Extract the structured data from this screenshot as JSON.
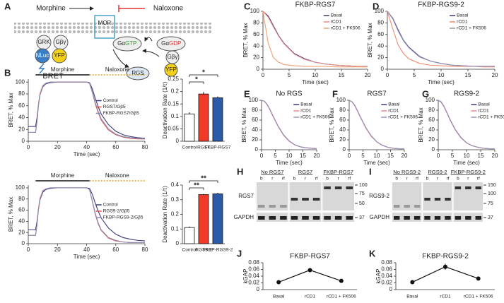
{
  "diagram": {
    "panel": "A",
    "agonist": "Morphine",
    "antagonist": "Naloxone",
    "receptor": "MOR",
    "grk": "GRK",
    "gbg_left": "Gβγ",
    "nluc": "NLuc",
    "yfp_left": "YFP",
    "bret": "BRET",
    "ga_gtp": {
      "subunit": "Gα",
      "nucleotide": "GTP"
    },
    "ga_gdp": {
      "subunit": "Gα",
      "nucleotide": "GDP"
    },
    "gbg_right": "Gβγ",
    "yfp_right": "YFP",
    "rgs": "RGS"
  },
  "chart_data": [
    {
      "type": "line",
      "panel": "B",
      "annotations": [
        "Morphine",
        "Naloxone"
      ],
      "x_label": "Time (sec)",
      "y_label": "BRET, % Max",
      "legend": "center right",
      "xlim": [
        0,
        80
      ],
      "ylim": [
        0,
        105
      ],
      "xticks": [
        0,
        20,
        40,
        60,
        80
      ],
      "yticks": [
        0,
        20,
        40,
        60,
        80,
        100
      ],
      "x": [
        0,
        5,
        6,
        7,
        8,
        10,
        12,
        15,
        20,
        30,
        40,
        42,
        44,
        46,
        48,
        50,
        55,
        60,
        65,
        70,
        75,
        80
      ],
      "series": [
        {
          "name": "Control",
          "color": "#3a3a78",
          "values": [
            25,
            25,
            40,
            62,
            78,
            92,
            97,
            99,
            100,
            100,
            100,
            99,
            88,
            72,
            58,
            46,
            28,
            17,
            11,
            8,
            6,
            5
          ]
        },
        {
          "name": "RGS7/Gβ5",
          "color": "#d9534f",
          "values": [
            15,
            15,
            35,
            62,
            80,
            94,
            98,
            100,
            100,
            100,
            100,
            98,
            82,
            63,
            48,
            36,
            19,
            11,
            7,
            5,
            4,
            4
          ]
        },
        {
          "name": "FKBP-RGS7/Gβ5",
          "color": "#8a8fb5",
          "values": [
            15,
            15,
            33,
            60,
            78,
            93,
            98,
            100,
            100,
            100,
            100,
            98,
            83,
            65,
            50,
            38,
            21,
            12,
            8,
            6,
            5,
            4
          ]
        }
      ]
    },
    {
      "type": "bar",
      "y_label": "Deactivation Rate (1/τ)",
      "categories": [
        "Control",
        "RGS7",
        "FKBP-RGS7"
      ],
      "values": [
        0.11,
        0.19,
        0.175
      ],
      "errors": [
        0.006,
        0.008,
        0.005
      ],
      "colors": [
        "#ffffff",
        "#f03a2a",
        "#2b5aa8"
      ],
      "ylim": [
        0,
        0.25
      ],
      "yticks": [
        0,
        0.05,
        0.1,
        0.15,
        0.2,
        0.25
      ],
      "significance": [
        "*",
        "*"
      ]
    },
    {
      "type": "line",
      "annotations": [
        "Morphine",
        "Naloxone"
      ],
      "x_label": "Time (sec)",
      "y_label": "BRET, % Max",
      "legend": "center right",
      "xlim": [
        0,
        80
      ],
      "ylim": [
        0,
        105
      ],
      "xticks": [
        0,
        20,
        40,
        60,
        80
      ],
      "yticks": [
        0,
        20,
        40,
        60,
        80,
        100
      ],
      "x": [
        0,
        5,
        6,
        7,
        8,
        10,
        12,
        15,
        20,
        30,
        40,
        42,
        44,
        46,
        48,
        50,
        55,
        60,
        65,
        70,
        75,
        80
      ],
      "series": [
        {
          "name": "Control",
          "color": "#3a3a78",
          "values": [
            25,
            25,
            40,
            62,
            78,
            92,
            97,
            99,
            100,
            100,
            100,
            99,
            88,
            72,
            58,
            46,
            28,
            17,
            11,
            8,
            6,
            5
          ]
        },
        {
          "name": "RGS9-2/Gβ5",
          "color": "#d9534f",
          "values": [
            15,
            15,
            36,
            63,
            81,
            95,
            98,
            100,
            100,
            100,
            100,
            97,
            75,
            52,
            35,
            24,
            10,
            5,
            3,
            2,
            2,
            2
          ]
        },
        {
          "name": "FKBP-RGS9-2/Gβ5",
          "color": "#8a8fb5",
          "values": [
            15,
            15,
            34,
            61,
            79,
            94,
            98,
            100,
            100,
            100,
            100,
            97,
            76,
            54,
            37,
            25,
            11,
            6,
            3,
            2,
            2,
            2
          ]
        }
      ]
    },
    {
      "type": "bar",
      "y_label": "Deactivation Rate (1/τ)",
      "categories": [
        "Control",
        "RGS9-2",
        "FKBP-RGS9-2"
      ],
      "values": [
        0.11,
        0.335,
        0.34
      ],
      "errors": [
        0.007,
        0.005,
        0.007
      ],
      "colors": [
        "#ffffff",
        "#f03a2a",
        "#2b5aa8"
      ],
      "ylim": [
        0,
        0.4
      ],
      "yticks": [
        0,
        0.1,
        0.2,
        0.3,
        0.4
      ],
      "significance": [
        "**",
        "**"
      ]
    },
    {
      "type": "line",
      "panel": "C",
      "title": "FKBP-RGS7",
      "x_label": "Time (sec)",
      "y_label": "BRET, % Max",
      "legend": "upper right",
      "xlim": [
        0,
        20
      ],
      "ylim": [
        0,
        100
      ],
      "xticks": [
        0,
        5,
        10,
        15,
        20
      ],
      "yticks": [
        0,
        20,
        40,
        60,
        80,
        100
      ],
      "x": [
        0,
        1,
        2,
        3,
        4,
        6,
        8,
        10,
        12,
        14,
        16,
        18,
        20
      ],
      "series": [
        {
          "name": "Basal",
          "color": "#3a3a78",
          "values": [
            100,
            92,
            75,
            58,
            45,
            27,
            18,
            12,
            9,
            7,
            6,
            5,
            5
          ]
        },
        {
          "name": "rCD1",
          "color": "#e58a8a",
          "values": [
            100,
            90,
            73,
            57,
            44,
            26,
            17,
            12,
            9,
            7,
            6,
            5,
            5
          ]
        },
        {
          "name": "rCD1 + FK506",
          "color": "#f0a070",
          "values": [
            100,
            45,
            20,
            12,
            8,
            6,
            5,
            5,
            5,
            4,
            4,
            4,
            4
          ]
        }
      ]
    },
    {
      "type": "line",
      "panel": "D",
      "title": "FKBP-RGS9-2",
      "x_label": "Time (sec)",
      "y_label": "BRET, % Max",
      "legend": "upper right",
      "xlim": [
        0,
        20
      ],
      "ylim": [
        0,
        100
      ],
      "xticks": [
        0,
        5,
        10,
        15,
        20
      ],
      "yticks": [
        0,
        20,
        40,
        60,
        80,
        100
      ],
      "x": [
        0,
        1,
        2,
        3,
        4,
        6,
        8,
        10,
        12,
        14,
        16,
        18,
        20
      ],
      "series": [
        {
          "name": "Basal",
          "color": "#3a3a78",
          "values": [
            100,
            88,
            68,
            50,
            38,
            22,
            14,
            10,
            7,
            6,
            5,
            5,
            5
          ]
        },
        {
          "name": "rCD1",
          "color": "#f08a70",
          "values": [
            100,
            70,
            42,
            27,
            18,
            10,
            7,
            6,
            5,
            5,
            5,
            4,
            4
          ]
        },
        {
          "name": "rCD1 + FK506",
          "color": "#9a90b8",
          "values": [
            100,
            87,
            66,
            49,
            37,
            21,
            14,
            10,
            7,
            6,
            5,
            5,
            5
          ]
        }
      ]
    },
    {
      "type": "line",
      "panel": "E",
      "title": "No RGS",
      "x_label": "Time (sec)",
      "y_label": "BRET, % Max",
      "legend": "upper right",
      "xlim": [
        0,
        20
      ],
      "ylim": [
        0,
        100
      ],
      "xticks": [
        0,
        5,
        10,
        15,
        20
      ],
      "yticks": [
        0,
        20,
        40,
        60,
        80,
        100
      ],
      "x": [
        0,
        1,
        2,
        3,
        4,
        6,
        8,
        10,
        12,
        14,
        16,
        18,
        20
      ],
      "series": [
        {
          "name": "Basal",
          "color": "#3a3a78",
          "values": [
            100,
            98,
            92,
            82,
            70,
            48,
            30,
            18,
            10,
            6,
            4,
            3,
            2
          ]
        },
        {
          "name": "rCD1",
          "color": "#e58a8a",
          "values": [
            100,
            98,
            91,
            81,
            69,
            47,
            29,
            17,
            10,
            6,
            4,
            3,
            2
          ]
        },
        {
          "name": "rCD1 + FK506",
          "color": "#9a90b8",
          "values": [
            100,
            98,
            92,
            82,
            70,
            48,
            30,
            18,
            10,
            6,
            4,
            3,
            2
          ]
        }
      ]
    },
    {
      "type": "line",
      "panel": "F",
      "title": "RGS7",
      "x_label": "Time (sec)",
      "y_label": "BRET, % Max",
      "legend": "upper right",
      "xlim": [
        0,
        20
      ],
      "ylim": [
        0,
        100
      ],
      "xticks": [
        0,
        5,
        10,
        15,
        20
      ],
      "yticks": [
        0,
        20,
        40,
        60,
        80,
        100
      ],
      "x": [
        0,
        1,
        2,
        3,
        4,
        6,
        8,
        10,
        12,
        14,
        16,
        18,
        20
      ],
      "series": [
        {
          "name": "Basal",
          "color": "#3a3a78",
          "values": [
            100,
            97,
            90,
            79,
            67,
            45,
            28,
            16,
            9,
            5,
            3,
            2,
            2
          ]
        },
        {
          "name": "rCD1",
          "color": "#e58a8a",
          "values": [
            100,
            97,
            89,
            78,
            66,
            44,
            27,
            16,
            9,
            5,
            3,
            2,
            2
          ]
        },
        {
          "name": "rCD1 + FK506",
          "color": "#9a90b8",
          "values": [
            100,
            97,
            90,
            79,
            67,
            45,
            28,
            16,
            9,
            5,
            3,
            2,
            2
          ]
        }
      ]
    },
    {
      "type": "line",
      "panel": "G",
      "title": "RGS9-2",
      "x_label": "Time (sec)",
      "y_label": "BRET, % Max",
      "legend": "upper right",
      "xlim": [
        0,
        20
      ],
      "ylim": [
        0,
        100
      ],
      "xticks": [
        0,
        5,
        10,
        15,
        20
      ],
      "yticks": [
        0,
        20,
        40,
        60,
        80,
        100
      ],
      "x": [
        0,
        1,
        2,
        3,
        4,
        6,
        8,
        10,
        12,
        14,
        16,
        18,
        20
      ],
      "series": [
        {
          "name": "Basal",
          "color": "#3a3a78",
          "values": [
            100,
            97,
            88,
            76,
            63,
            41,
            25,
            14,
            8,
            5,
            3,
            2,
            2
          ]
        },
        {
          "name": "rCD1",
          "color": "#e58a8a",
          "values": [
            100,
            96,
            87,
            75,
            62,
            40,
            24,
            14,
            8,
            5,
            3,
            2,
            2
          ]
        },
        {
          "name": "rCD1 + FK506",
          "color": "#9a90b8",
          "values": [
            100,
            97,
            88,
            76,
            63,
            41,
            25,
            14,
            8,
            5,
            3,
            2,
            2
          ]
        }
      ]
    },
    {
      "type": "point",
      "panel": "J",
      "title": "FKBP-RGS7",
      "y_label": "kGAP",
      "categories": [
        "Basal",
        "rCD1",
        "rCD1 + FK506"
      ],
      "values": [
        0.022,
        0.058,
        0.026
      ],
      "errors": [
        0.002,
        0.004,
        0.003
      ],
      "color": "#111111",
      "ylim": [
        0,
        0.08
      ],
      "yticks": [
        0,
        0.02,
        0.04,
        0.06,
        0.08
      ]
    },
    {
      "type": "point",
      "panel": "K",
      "title": "FKBP-RGS9-2",
      "y_label": "kGAP",
      "categories": [
        "Basal",
        "rCD1",
        "rCD1 + FK506"
      ],
      "values": [
        0.022,
        0.068,
        0.033
      ],
      "errors": [
        0.003,
        0.009,
        0.003
      ],
      "color": "#111111",
      "ylim": [
        0,
        0.08
      ],
      "yticks": [
        0,
        0.02,
        0.04,
        0.06,
        0.08
      ]
    }
  ],
  "blots": [
    {
      "panel": "H",
      "groups": [
        "No RGS7",
        "RGS7",
        "FKBP-RGS7"
      ],
      "lanes": [
        "b",
        "r",
        "rf"
      ],
      "rows": [
        "RGS7",
        "GAPDH"
      ],
      "markers": [
        100,
        75,
        50,
        37
      ]
    },
    {
      "panel": "I",
      "groups": [
        "No RGS9-2",
        "RGS9-2",
        "FKBP-RGS9-2"
      ],
      "lanes": [
        "b",
        "r",
        "rf"
      ],
      "rows": [
        "RGS9-2",
        "GAPDH"
      ],
      "markers": [
        150,
        100,
        75,
        37
      ]
    }
  ]
}
